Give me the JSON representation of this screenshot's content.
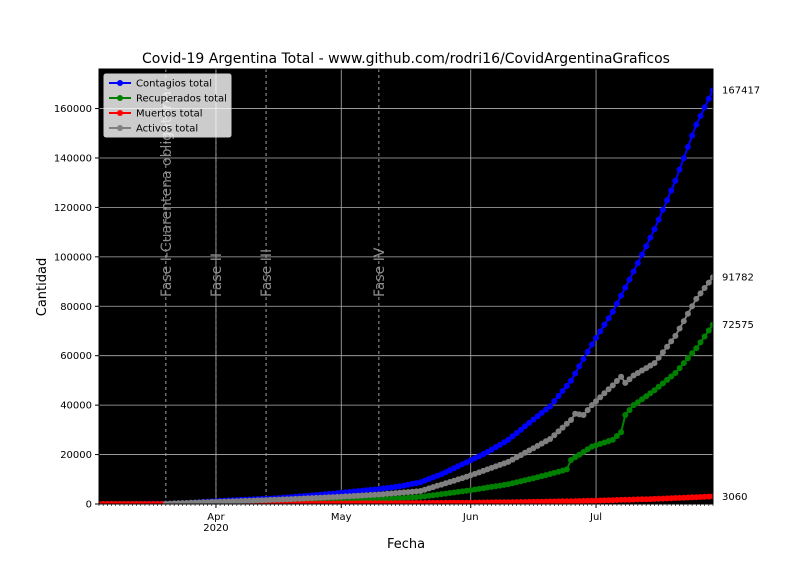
{
  "chart_data": {
    "type": "line",
    "title": "Covid-19 Argentina Total - www.github.com/rodri16/CovidArgentinaGraficos",
    "xlabel": "Fecha",
    "ylabel": "Cantidad",
    "xlim": [
      "2020-03-04",
      "2020-07-29"
    ],
    "ylim": [
      0,
      176000
    ],
    "x_ticks": [
      {
        "date": "2020-04-01",
        "label": "Apr",
        "sublabel": "2020"
      },
      {
        "date": "2020-05-01",
        "label": "May",
        "sublabel": ""
      },
      {
        "date": "2020-06-01",
        "label": "Jun",
        "sublabel": ""
      },
      {
        "date": "2020-07-01",
        "label": "Jul",
        "sublabel": ""
      }
    ],
    "y_ticks": [
      0,
      20000,
      40000,
      60000,
      80000,
      100000,
      120000,
      140000,
      160000
    ],
    "y_tick_labels": [
      "0",
      "20000",
      "40000",
      "60000",
      "80000",
      "100000",
      "120000",
      "140000",
      "160000"
    ],
    "grid": true,
    "background": "#000000",
    "legend_position": "top-left",
    "phases": [
      {
        "date": "2020-03-20",
        "label": "Fase I-Cuarentena obligatoria"
      },
      {
        "date": "2020-04-01",
        "label": "Fase II"
      },
      {
        "date": "2020-04-13",
        "label": "Fase III"
      },
      {
        "date": "2020-05-10",
        "label": "Fase IV"
      }
    ],
    "series": [
      {
        "name": "Contagios total",
        "color": "#0000ff",
        "points": [
          [
            "2020-03-04",
            1
          ],
          [
            "2020-03-10",
            19
          ],
          [
            "2020-03-15",
            45
          ],
          [
            "2020-03-20",
            128
          ],
          [
            "2020-03-25",
            387
          ],
          [
            "2020-03-31",
            1054
          ],
          [
            "2020-04-05",
            1554
          ],
          [
            "2020-04-10",
            1894
          ],
          [
            "2020-04-15",
            2272
          ],
          [
            "2020-04-20",
            2941
          ],
          [
            "2020-04-25",
            3607
          ],
          [
            "2020-05-01",
            4532
          ],
          [
            "2020-05-05",
            5208
          ],
          [
            "2020-05-10",
            6034
          ],
          [
            "2020-05-15",
            7134
          ],
          [
            "2020-05-20",
            8809
          ],
          [
            "2020-05-25",
            12076
          ],
          [
            "2020-05-31",
            16838
          ],
          [
            "2020-06-05",
            21037
          ],
          [
            "2020-06-10",
            25987
          ],
          [
            "2020-06-15",
            32785
          ],
          [
            "2020-06-20",
            39570
          ],
          [
            "2020-06-25",
            49851
          ],
          [
            "2020-06-30",
            64530
          ],
          [
            "2020-07-05",
            77815
          ],
          [
            "2020-07-10",
            94060
          ],
          [
            "2020-07-15",
            111160
          ],
          [
            "2020-07-20",
            130774
          ],
          [
            "2020-07-25",
            153520
          ],
          [
            "2020-07-29",
            167417
          ]
        ],
        "end_label": "167417"
      },
      {
        "name": "Recuperados total",
        "color": "#008000",
        "points": [
          [
            "2020-03-04",
            0
          ],
          [
            "2020-03-20",
            3
          ],
          [
            "2020-03-31",
            240
          ],
          [
            "2020-04-10",
            440
          ],
          [
            "2020-04-20",
            737
          ],
          [
            "2020-05-01",
            1354
          ],
          [
            "2020-05-10",
            1862
          ],
          [
            "2020-05-20",
            2872
          ],
          [
            "2020-05-31",
            5323
          ],
          [
            "2020-06-10",
            7991
          ],
          [
            "2020-06-15",
            9996
          ],
          [
            "2020-06-20",
            12125
          ],
          [
            "2020-06-24",
            14000
          ],
          [
            "2020-06-25",
            17800
          ],
          [
            "2020-06-30",
            23208
          ],
          [
            "2020-07-05",
            26000
          ],
          [
            "2020-07-07",
            29000
          ],
          [
            "2020-07-08",
            36000
          ],
          [
            "2020-07-10",
            40000
          ],
          [
            "2020-07-15",
            46000
          ],
          [
            "2020-07-20",
            53000
          ],
          [
            "2020-07-25",
            63000
          ],
          [
            "2020-07-29",
            72575
          ]
        ],
        "end_label": "72575"
      },
      {
        "name": "Muertos total",
        "color": "#ff0000",
        "points": [
          [
            "2020-03-04",
            0
          ],
          [
            "2020-03-20",
            3
          ],
          [
            "2020-03-31",
            27
          ],
          [
            "2020-04-15",
            102
          ],
          [
            "2020-05-01",
            218
          ],
          [
            "2020-05-15",
            353
          ],
          [
            "2020-05-31",
            528
          ],
          [
            "2020-06-15",
            837
          ],
          [
            "2020-06-30",
            1307
          ],
          [
            "2020-07-15",
            2050
          ],
          [
            "2020-07-29",
            3060
          ]
        ],
        "end_label": "3060"
      },
      {
        "name": "Activos total",
        "color": "#808080",
        "points": [
          [
            "2020-03-20",
            120
          ],
          [
            "2020-03-31",
            790
          ],
          [
            "2020-04-10",
            1370
          ],
          [
            "2020-04-20",
            2060
          ],
          [
            "2020-05-01",
            2960
          ],
          [
            "2020-05-10",
            3840
          ],
          [
            "2020-05-20",
            5260
          ],
          [
            "2020-05-31",
            10990
          ],
          [
            "2020-06-10",
            17020
          ],
          [
            "2020-06-20",
            26300
          ],
          [
            "2020-06-25",
            34000
          ],
          [
            "2020-06-26",
            36500
          ],
          [
            "2020-06-28",
            36000
          ],
          [
            "2020-06-30",
            40000
          ],
          [
            "2020-07-05",
            48000
          ],
          [
            "2020-07-07",
            51500
          ],
          [
            "2020-07-08",
            49000
          ],
          [
            "2020-07-10",
            52000
          ],
          [
            "2020-07-15",
            57000
          ],
          [
            "2020-07-20",
            68000
          ],
          [
            "2020-07-25",
            83000
          ],
          [
            "2020-07-29",
            91782
          ]
        ],
        "end_label": "91782"
      }
    ]
  }
}
